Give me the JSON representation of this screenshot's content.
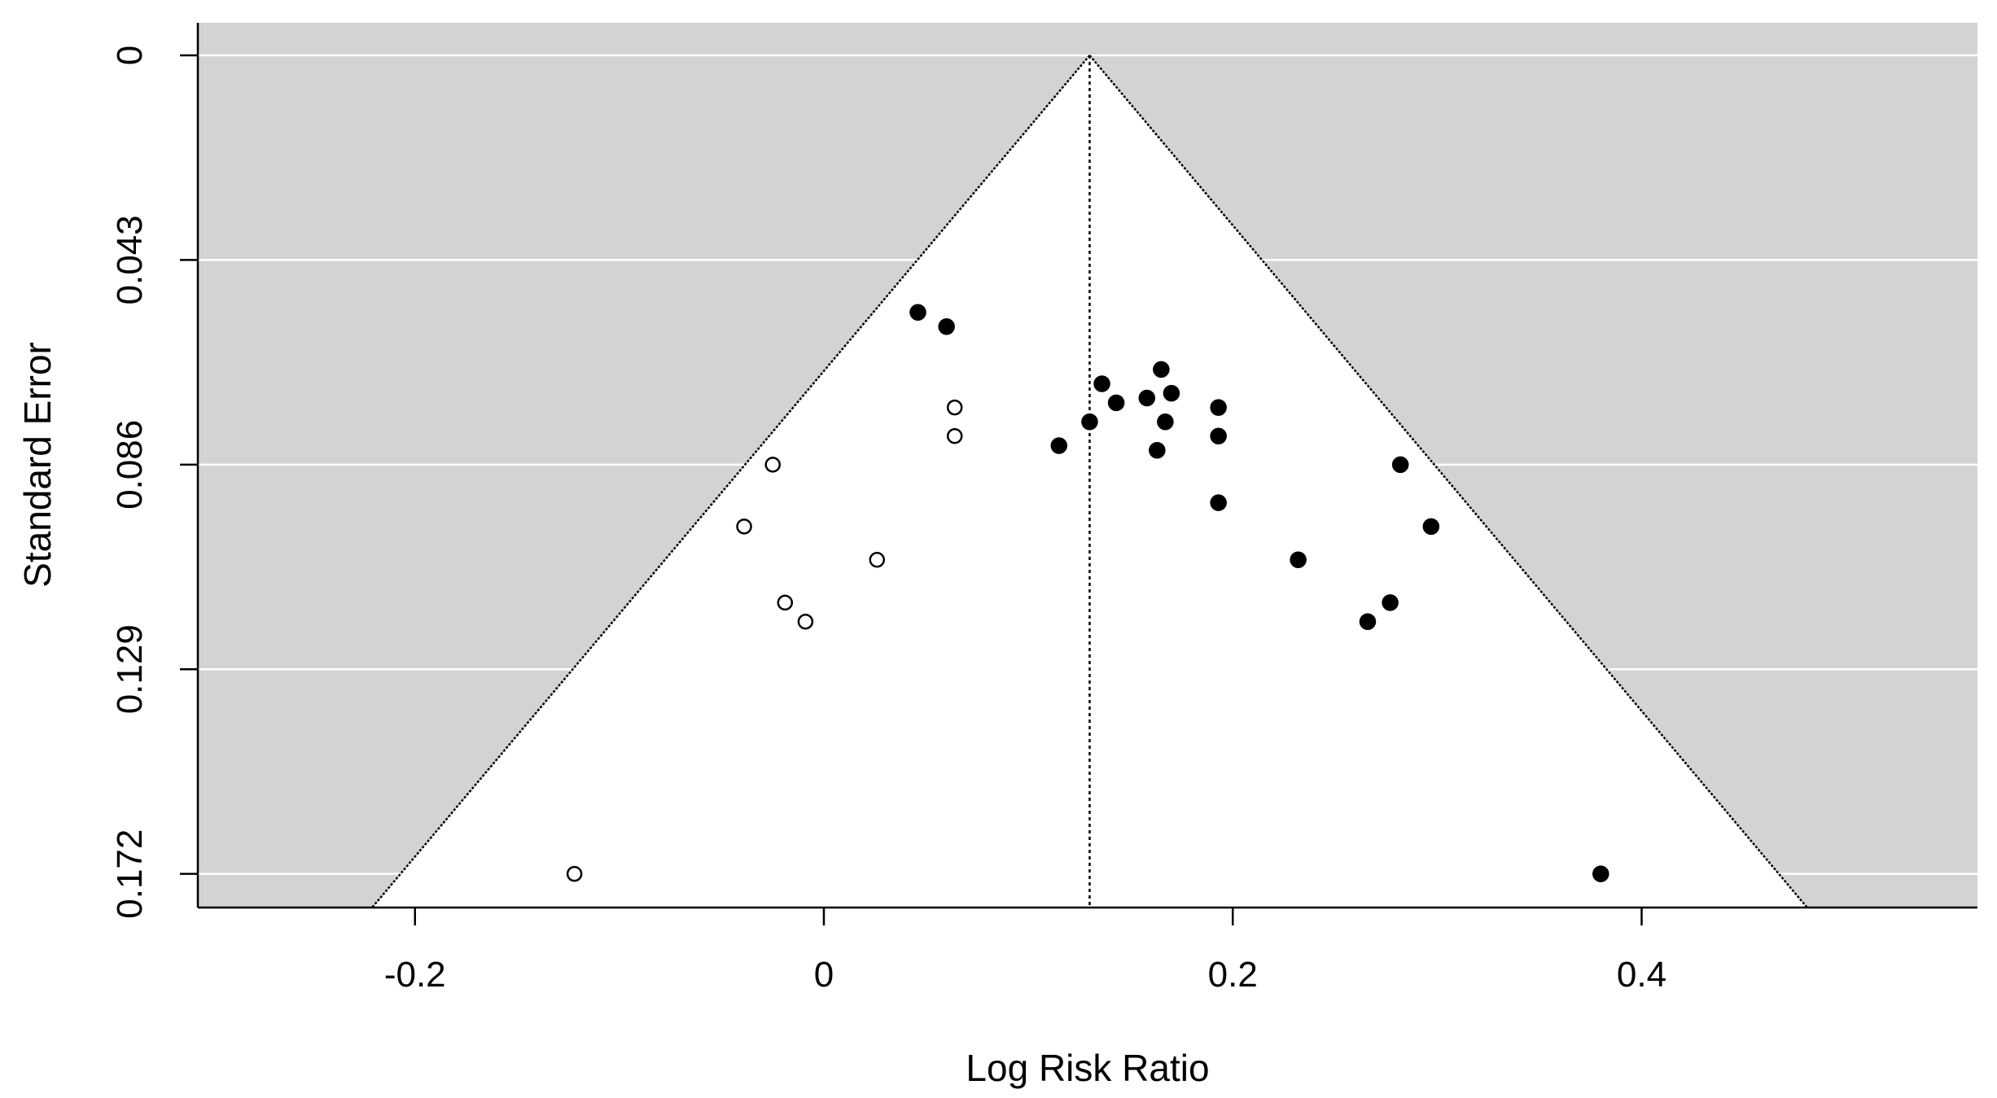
{
  "chart_data": {
    "type": "scatter",
    "subtype": "funnel-plot",
    "title": "",
    "xlabel": "Log Risk Ratio",
    "ylabel": "Standard Error",
    "xlim": [
      -0.3,
      0.56
    ],
    "ylim": [
      0,
      0.179
    ],
    "y_reversed": true,
    "x_ticks": [
      -0.2,
      0,
      0.2,
      0.4
    ],
    "x_tick_labels": [
      "-0.2",
      "0",
      "0.2",
      "0.4"
    ],
    "y_ticks": [
      0,
      0.043,
      0.086,
      0.129,
      0.172
    ],
    "y_tick_labels": [
      "0",
      "0.043",
      "0.086",
      "0.129",
      "0.172"
    ],
    "grid": "horizontal",
    "funnel_center": 0.13,
    "funnel_z": 1.96,
    "colors": {
      "outside_region": "#d3d3d3",
      "inside_region": "#ffffff",
      "gridline": "#ffffff",
      "funnel_line": "#000000",
      "point": "#000000",
      "axis": "#000000"
    },
    "series": [
      {
        "marker": "filled-circle",
        "points": [
          [
            0.046,
            0.054
          ],
          [
            0.06,
            0.057
          ],
          [
            0.136,
            0.069
          ],
          [
            0.165,
            0.066
          ],
          [
            0.143,
            0.073
          ],
          [
            0.158,
            0.072
          ],
          [
            0.17,
            0.071
          ],
          [
            0.193,
            0.074
          ],
          [
            0.13,
            0.077
          ],
          [
            0.167,
            0.077
          ],
          [
            0.115,
            0.082
          ],
          [
            0.163,
            0.083
          ],
          [
            0.193,
            0.08
          ],
          [
            0.282,
            0.086
          ],
          [
            0.193,
            0.094
          ],
          [
            0.297,
            0.099
          ],
          [
            0.232,
            0.106
          ],
          [
            0.277,
            0.115
          ],
          [
            0.266,
            0.119
          ],
          [
            0.38,
            0.172
          ]
        ]
      },
      {
        "marker": "open-circle",
        "points": [
          [
            0.064,
            0.074
          ],
          [
            0.064,
            0.08
          ],
          [
            -0.025,
            0.086
          ],
          [
            -0.039,
            0.099
          ],
          [
            0.026,
            0.106
          ],
          [
            -0.019,
            0.115
          ],
          [
            -0.009,
            0.119
          ],
          [
            -0.122,
            0.172
          ]
        ]
      }
    ]
  }
}
